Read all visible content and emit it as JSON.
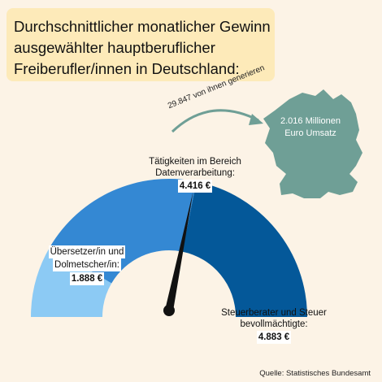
{
  "title": {
    "lines": [
      "Durchschnittlicher monatlicher Gewinn",
      "ausgewählter hauptberuflicher",
      "Freiberufler/innen in Deutschland:"
    ]
  },
  "chart_data": {
    "type": "gauge",
    "categories": [
      "Übersetzer/in und Dolmetscher/in",
      "Tätigkeiten im Bereich Datenverarbeitung",
      "Steuerberater und Steuerbevollmächtigte"
    ],
    "values": [
      1888,
      4416,
      4883
    ],
    "value_labels": [
      "1.888 €",
      "4.416 €",
      "4.883 €"
    ],
    "colors": [
      "#8ccaf4",
      "#3488d3",
      "#045899"
    ],
    "needle_value": 4416
  },
  "labels": {
    "translator": {
      "line1": "Übersetzer/in und",
      "line2": "Dolmetscher/in:",
      "value": "1.888 €"
    },
    "dataprocessing": {
      "line1": "Tätigkeiten im Bereich",
      "line2": "Datenverarbeitung:",
      "value": "4.416 €"
    },
    "tax": {
      "line1": "Steuerberater und Steuer",
      "line2": "bevollmächtigte:",
      "value": "4.883 €"
    }
  },
  "annotation": {
    "count": "29.847",
    "text": "von ihnen generieren"
  },
  "map": {
    "line1": "2.016 Millionen",
    "line2": "Euro Umsatz",
    "color": "#6f9f96"
  },
  "source": "Quelle: Statistisches Bundesamt"
}
